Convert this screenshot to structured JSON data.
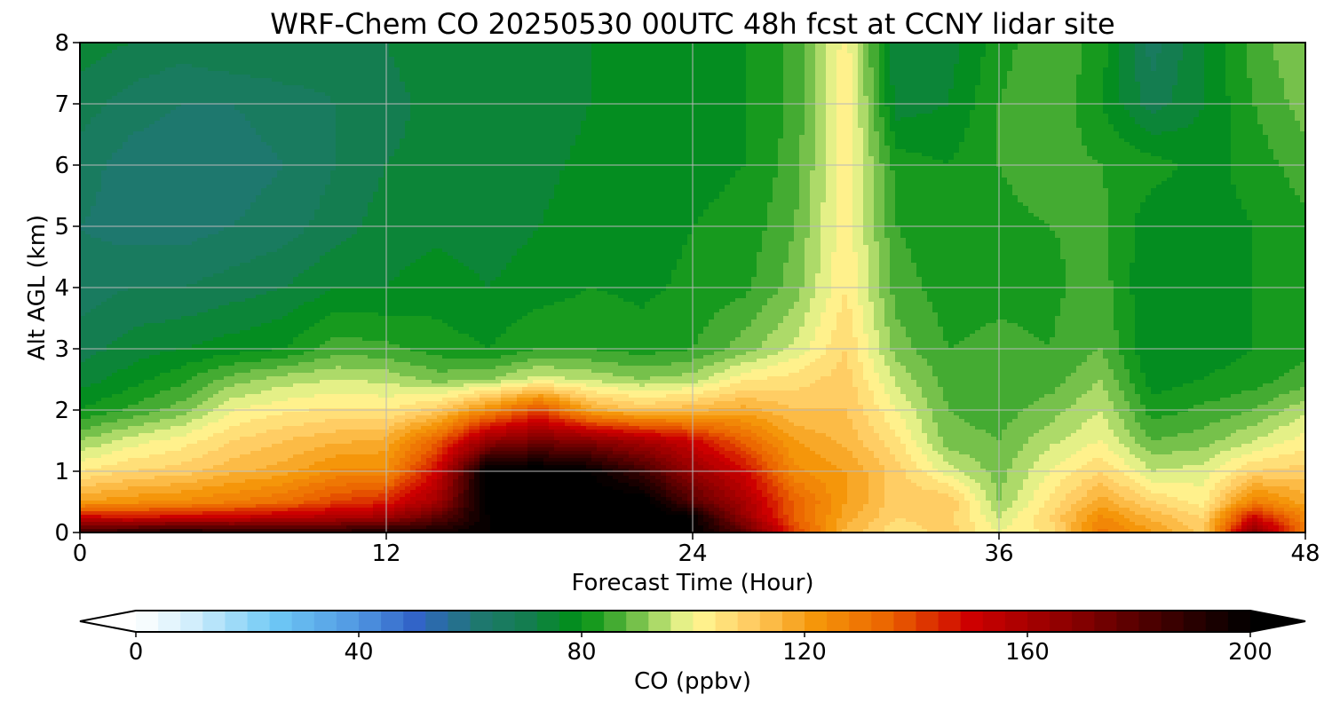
{
  "chart_data": {
    "type": "heatmap",
    "title": "WRF-Chem CO  20250530 00UTC 48h fcst at CCNY lidar site",
    "xlabel": "Forecast Time (Hour)",
    "ylabel": "Alt AGL (km)",
    "xlim": [
      0,
      48
    ],
    "ylim": [
      0,
      8
    ],
    "x_ticks": [
      0,
      12,
      24,
      36,
      48
    ],
    "y_ticks": [
      0,
      1,
      2,
      3,
      4,
      5,
      6,
      7,
      8
    ],
    "grid": true,
    "z_label": "CO  (ppbv)",
    "z_range": [
      0,
      200
    ],
    "z_ticks": [
      0,
      40,
      80,
      120,
      160,
      200
    ],
    "colorbar": "horizontal-bottom",
    "grid_x_hours": [
      0,
      2,
      4,
      6,
      8,
      10,
      12,
      14,
      16,
      18,
      20,
      22,
      24,
      26,
      28,
      30,
      32,
      34,
      36,
      38,
      40,
      42,
      44,
      46,
      48
    ],
    "grid_z_km": [
      0,
      0.25,
      0.5,
      1,
      1.5,
      2,
      2.5,
      3,
      4,
      5,
      6,
      7,
      8
    ],
    "co_ppbv_rows": [
      [
        185,
        190,
        195,
        190,
        190,
        190,
        195,
        195,
        200,
        205,
        205,
        205,
        200,
        180,
        140,
        115,
        105,
        110,
        100,
        105,
        130,
        120,
        110,
        170,
        130
      ],
      [
        150,
        148,
        150,
        152,
        155,
        158,
        162,
        178,
        200,
        205,
        205,
        205,
        200,
        165,
        135,
        118,
        108,
        110,
        96,
        108,
        125,
        115,
        108,
        150,
        125
      ],
      [
        120,
        123,
        125,
        128,
        132,
        140,
        145,
        162,
        205,
        205,
        205,
        205,
        180,
        160,
        135,
        120,
        110,
        112,
        92,
        105,
        118,
        108,
        102,
        128,
        118
      ],
      [
        104,
        108,
        110,
        115,
        118,
        125,
        125,
        150,
        205,
        205,
        200,
        185,
        165,
        150,
        125,
        120,
        110,
        98,
        90,
        100,
        108,
        96,
        98,
        108,
        110
      ],
      [
        92,
        98,
        102,
        108,
        112,
        115,
        117,
        135,
        165,
        172,
        168,
        160,
        150,
        135,
        120,
        115,
        105,
        90,
        88,
        95,
        100,
        88,
        90,
        96,
        102
      ],
      [
        80,
        85,
        90,
        100,
        103,
        105,
        104,
        110,
        125,
        140,
        118,
        112,
        115,
        118,
        112,
        112,
        100,
        88,
        86,
        90,
        96,
        82,
        85,
        88,
        95
      ],
      [
        74,
        78,
        83,
        90,
        94,
        96,
        95,
        90,
        92,
        98,
        95,
        92,
        94,
        103,
        106,
        110,
        95,
        86,
        86,
        86,
        92,
        78,
        80,
        82,
        86
      ],
      [
        70,
        74,
        76,
        78,
        80,
        86,
        85,
        82,
        80,
        84,
        84,
        82,
        84,
        90,
        97,
        108,
        90,
        84,
        85,
        84,
        88,
        76,
        78,
        80,
        83
      ],
      [
        66,
        68,
        68,
        70,
        72,
        76,
        76,
        78,
        76,
        78,
        80,
        79,
        81,
        83,
        90,
        104,
        86,
        82,
        83,
        83,
        86,
        76,
        78,
        80,
        82
      ],
      [
        64,
        62,
        62,
        64,
        66,
        70,
        74,
        75,
        74,
        76,
        78,
        78,
        80,
        81,
        88,
        103,
        84,
        81,
        83,
        84,
        85,
        77,
        78,
        80,
        83
      ],
      [
        66,
        62,
        61,
        62,
        64,
        68,
        72,
        74,
        73,
        75,
        77,
        78,
        79,
        80,
        86,
        103,
        82,
        80,
        84,
        86,
        84,
        82,
        78,
        82,
        86
      ],
      [
        70,
        66,
        64,
        64,
        66,
        68,
        70,
        74,
        73,
        74,
        76,
        77,
        78,
        80,
        85,
        104,
        74,
        76,
        84,
        88,
        80,
        70,
        76,
        84,
        90
      ],
      [
        74,
        72,
        70,
        72,
        72,
        70,
        72,
        76,
        74,
        74,
        76,
        76,
        78,
        80,
        85,
        102,
        72,
        74,
        82,
        88,
        82,
        66,
        76,
        86,
        92
      ]
    ]
  }
}
